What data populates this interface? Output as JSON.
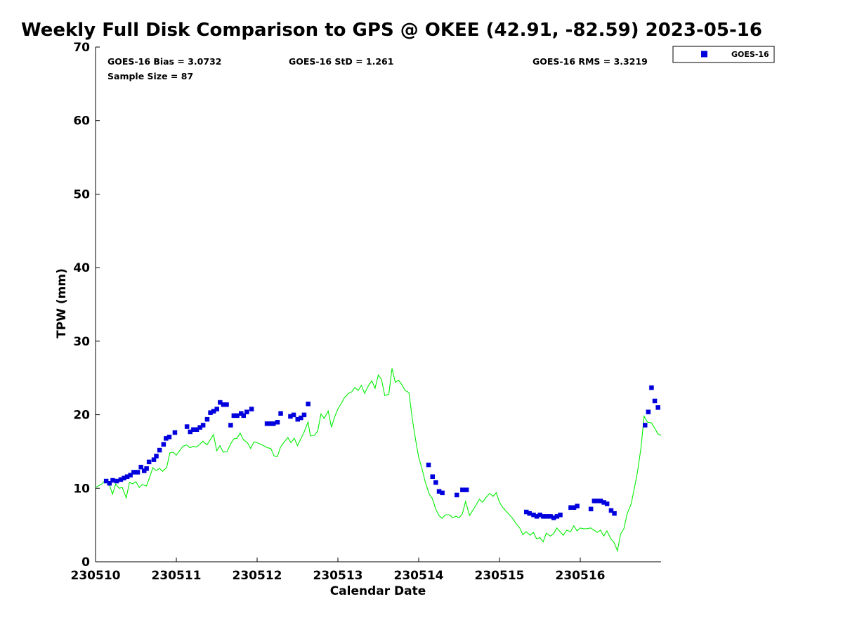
{
  "chart_data": {
    "type": "scatter",
    "title": "Weekly Full Disk Comparison to GPS @ OKEE (42.91, -82.59) 2023-05-16",
    "xlabel": "Calendar Date",
    "ylabel": "TPW (mm)",
    "xlim": [
      0,
      7
    ],
    "ylim": [
      0,
      70
    ],
    "x_ticks": [
      {
        "value": 0,
        "label": "230510"
      },
      {
        "value": 1,
        "label": "230511"
      },
      {
        "value": 2,
        "label": "230512"
      },
      {
        "value": 3,
        "label": "230513"
      },
      {
        "value": 4,
        "label": "230514"
      },
      {
        "value": 5,
        "label": "230515"
      },
      {
        "value": 6,
        "label": "230516"
      }
    ],
    "y_ticks": [
      0,
      10,
      20,
      30,
      40,
      50,
      60,
      70
    ],
    "grid": false,
    "legend": {
      "position": "top-right outside",
      "entries": [
        "GOES-16"
      ]
    },
    "stats": {
      "bias": "GOES-16 Bias = 3.0732",
      "std": "GOES-16 StD = 1.261",
      "rms": "GOES-16 RMS = 3.3219",
      "sample": "Sample Size = 87"
    },
    "series": [
      {
        "name": "GOES-16",
        "kind": "scatter",
        "color": "#0000dd",
        "points": [
          [
            0.13,
            11.0
          ],
          [
            0.17,
            10.7
          ],
          [
            0.21,
            11.1
          ],
          [
            0.26,
            11.0
          ],
          [
            0.31,
            11.2
          ],
          [
            0.35,
            11.4
          ],
          [
            0.39,
            11.6
          ],
          [
            0.43,
            11.8
          ],
          [
            0.47,
            12.2
          ],
          [
            0.52,
            12.2
          ],
          [
            0.56,
            12.9
          ],
          [
            0.6,
            12.4
          ],
          [
            0.63,
            12.7
          ],
          [
            0.66,
            13.6
          ],
          [
            0.72,
            13.9
          ],
          [
            0.75,
            14.4
          ],
          [
            0.79,
            15.2
          ],
          [
            0.84,
            16.0
          ],
          [
            0.87,
            16.8
          ],
          [
            0.91,
            17.0
          ],
          [
            0.98,
            17.6
          ],
          [
            1.13,
            18.4
          ],
          [
            1.17,
            17.7
          ],
          [
            1.21,
            18.0
          ],
          [
            1.25,
            18.0
          ],
          [
            1.29,
            18.3
          ],
          [
            1.33,
            18.6
          ],
          [
            1.38,
            19.4
          ],
          [
            1.42,
            20.3
          ],
          [
            1.46,
            20.5
          ],
          [
            1.5,
            20.8
          ],
          [
            1.54,
            21.7
          ],
          [
            1.58,
            21.4
          ],
          [
            1.62,
            21.4
          ],
          [
            1.67,
            18.6
          ],
          [
            1.71,
            19.9
          ],
          [
            1.75,
            19.9
          ],
          [
            1.8,
            20.2
          ],
          [
            1.83,
            19.9
          ],
          [
            1.87,
            20.4
          ],
          [
            1.93,
            20.8
          ],
          [
            2.12,
            18.8
          ],
          [
            2.16,
            18.8
          ],
          [
            2.2,
            18.8
          ],
          [
            2.25,
            19.0
          ],
          [
            2.29,
            20.2
          ],
          [
            2.41,
            19.8
          ],
          [
            2.45,
            20.0
          ],
          [
            2.5,
            19.4
          ],
          [
            2.54,
            19.6
          ],
          [
            2.58,
            20.0
          ],
          [
            2.63,
            21.5
          ],
          [
            4.12,
            13.2
          ],
          [
            4.17,
            11.6
          ],
          [
            4.21,
            10.8
          ],
          [
            4.25,
            9.6
          ],
          [
            4.29,
            9.4
          ],
          [
            4.47,
            9.1
          ],
          [
            4.54,
            9.8
          ],
          [
            4.59,
            9.8
          ],
          [
            5.33,
            6.8
          ],
          [
            5.37,
            6.6
          ],
          [
            5.42,
            6.4
          ],
          [
            5.46,
            6.2
          ],
          [
            5.5,
            6.4
          ],
          [
            5.54,
            6.2
          ],
          [
            5.58,
            6.2
          ],
          [
            5.63,
            6.2
          ],
          [
            5.67,
            6.0
          ],
          [
            5.71,
            6.2
          ],
          [
            5.75,
            6.4
          ],
          [
            5.88,
            7.4
          ],
          [
            5.92,
            7.4
          ],
          [
            5.96,
            7.6
          ],
          [
            6.13,
            7.2
          ],
          [
            6.17,
            8.3
          ],
          [
            6.21,
            8.3
          ],
          [
            6.25,
            8.3
          ],
          [
            6.29,
            8.1
          ],
          [
            6.33,
            7.9
          ],
          [
            6.38,
            7.0
          ],
          [
            6.42,
            6.6
          ],
          [
            6.8,
            18.6
          ],
          [
            6.84,
            20.4
          ],
          [
            6.88,
            23.7
          ],
          [
            6.92,
            21.9
          ],
          [
            6.96,
            21.0
          ]
        ]
      },
      {
        "name": "GPS",
        "kind": "line",
        "color": "#00ee00",
        "points": [
          [
            0.0,
            10.1
          ],
          [
            0.08,
            10.6
          ],
          [
            0.13,
            11.2
          ],
          [
            0.17,
            10.5
          ],
          [
            0.21,
            9.2
          ],
          [
            0.25,
            10.6
          ],
          [
            0.29,
            10.0
          ],
          [
            0.33,
            10.1
          ],
          [
            0.38,
            8.7
          ],
          [
            0.42,
            10.8
          ],
          [
            0.46,
            10.6
          ],
          [
            0.5,
            10.9
          ],
          [
            0.54,
            10.1
          ],
          [
            0.58,
            10.5
          ],
          [
            0.63,
            10.3
          ],
          [
            0.67,
            11.5
          ],
          [
            0.71,
            12.8
          ],
          [
            0.75,
            12.4
          ],
          [
            0.79,
            12.7
          ],
          [
            0.83,
            12.3
          ],
          [
            0.88,
            12.8
          ],
          [
            0.92,
            14.8
          ],
          [
            0.96,
            14.9
          ],
          [
            1.0,
            14.5
          ],
          [
            1.04,
            15.1
          ],
          [
            1.08,
            15.7
          ],
          [
            1.13,
            15.9
          ],
          [
            1.17,
            15.5
          ],
          [
            1.21,
            15.7
          ],
          [
            1.25,
            15.6
          ],
          [
            1.29,
            16.0
          ],
          [
            1.33,
            16.4
          ],
          [
            1.38,
            15.9
          ],
          [
            1.42,
            16.6
          ],
          [
            1.46,
            17.3
          ],
          [
            1.5,
            15.1
          ],
          [
            1.54,
            15.8
          ],
          [
            1.58,
            14.9
          ],
          [
            1.63,
            15.0
          ],
          [
            1.67,
            16.0
          ],
          [
            1.71,
            16.7
          ],
          [
            1.75,
            16.8
          ],
          [
            1.79,
            17.5
          ],
          [
            1.83,
            16.6
          ],
          [
            1.88,
            16.2
          ],
          [
            1.92,
            15.4
          ],
          [
            1.96,
            16.3
          ],
          [
            2.0,
            16.2
          ],
          [
            2.04,
            16.0
          ],
          [
            2.08,
            15.8
          ],
          [
            2.13,
            15.5
          ],
          [
            2.17,
            15.4
          ],
          [
            2.21,
            14.4
          ],
          [
            2.25,
            14.3
          ],
          [
            2.29,
            15.6
          ],
          [
            2.33,
            16.2
          ],
          [
            2.38,
            16.9
          ],
          [
            2.42,
            16.2
          ],
          [
            2.46,
            16.8
          ],
          [
            2.5,
            15.8
          ],
          [
            2.54,
            16.7
          ],
          [
            2.58,
            17.6
          ],
          [
            2.63,
            19.0
          ],
          [
            2.66,
            17.1
          ],
          [
            2.71,
            17.2
          ],
          [
            2.75,
            17.8
          ],
          [
            2.79,
            20.1
          ],
          [
            2.83,
            19.5
          ],
          [
            2.88,
            20.5
          ],
          [
            2.92,
            18.3
          ],
          [
            2.96,
            19.7
          ],
          [
            3.0,
            20.8
          ],
          [
            3.04,
            21.5
          ],
          [
            3.08,
            22.3
          ],
          [
            3.13,
            22.9
          ],
          [
            3.17,
            23.1
          ],
          [
            3.21,
            23.7
          ],
          [
            3.25,
            23.3
          ],
          [
            3.29,
            24.0
          ],
          [
            3.33,
            22.9
          ],
          [
            3.38,
            24.0
          ],
          [
            3.42,
            24.6
          ],
          [
            3.46,
            23.6
          ],
          [
            3.5,
            25.4
          ],
          [
            3.54,
            24.8
          ],
          [
            3.58,
            22.6
          ],
          [
            3.63,
            22.8
          ],
          [
            3.67,
            26.3
          ],
          [
            3.71,
            24.4
          ],
          [
            3.75,
            24.7
          ],
          [
            3.79,
            24.1
          ],
          [
            3.83,
            23.3
          ],
          [
            3.88,
            23.0
          ],
          [
            3.92,
            19.5
          ],
          [
            3.96,
            16.7
          ],
          [
            4.0,
            14.2
          ],
          [
            4.04,
            12.7
          ],
          [
            4.08,
            10.9
          ],
          [
            4.13,
            9.2
          ],
          [
            4.17,
            8.6
          ],
          [
            4.21,
            7.2
          ],
          [
            4.25,
            6.3
          ],
          [
            4.29,
            5.9
          ],
          [
            4.33,
            6.4
          ],
          [
            4.38,
            6.4
          ],
          [
            4.42,
            6.0
          ],
          [
            4.46,
            6.2
          ],
          [
            4.5,
            6.0
          ],
          [
            4.54,
            6.5
          ],
          [
            4.58,
            8.2
          ],
          [
            4.63,
            6.3
          ],
          [
            4.67,
            7.0
          ],
          [
            4.71,
            7.7
          ],
          [
            4.75,
            8.5
          ],
          [
            4.79,
            8.1
          ],
          [
            4.83,
            8.7
          ],
          [
            4.88,
            9.3
          ],
          [
            4.92,
            8.9
          ],
          [
            4.96,
            9.4
          ],
          [
            5.0,
            8.1
          ],
          [
            5.04,
            7.4
          ],
          [
            5.08,
            6.9
          ],
          [
            5.13,
            6.3
          ],
          [
            5.17,
            5.8
          ],
          [
            5.21,
            5.1
          ],
          [
            5.25,
            4.6
          ],
          [
            5.29,
            3.7
          ],
          [
            5.33,
            4.1
          ],
          [
            5.38,
            3.6
          ],
          [
            5.42,
            4.0
          ],
          [
            5.46,
            3.1
          ],
          [
            5.5,
            3.3
          ],
          [
            5.54,
            2.7
          ],
          [
            5.58,
            3.9
          ],
          [
            5.63,
            3.5
          ],
          [
            5.67,
            3.8
          ],
          [
            5.71,
            4.6
          ],
          [
            5.75,
            4.1
          ],
          [
            5.79,
            3.6
          ],
          [
            5.83,
            4.3
          ],
          [
            5.88,
            4.1
          ],
          [
            5.92,
            4.9
          ],
          [
            5.96,
            4.2
          ],
          [
            6.0,
            4.6
          ],
          [
            6.04,
            4.5
          ],
          [
            6.08,
            4.5
          ],
          [
            6.13,
            4.6
          ],
          [
            6.17,
            4.3
          ],
          [
            6.21,
            4.0
          ],
          [
            6.25,
            4.3
          ],
          [
            6.29,
            3.5
          ],
          [
            6.33,
            4.2
          ],
          [
            6.38,
            3.1
          ],
          [
            6.42,
            2.6
          ],
          [
            6.46,
            1.5
          ],
          [
            6.5,
            3.8
          ],
          [
            6.54,
            4.5
          ],
          [
            6.58,
            6.5
          ],
          [
            6.63,
            7.9
          ],
          [
            6.67,
            10.0
          ],
          [
            6.71,
            12.3
          ],
          [
            6.75,
            15.4
          ],
          [
            6.79,
            19.8
          ],
          [
            6.83,
            19.0
          ],
          [
            6.88,
            18.9
          ],
          [
            6.92,
            18.2
          ],
          [
            6.96,
            17.4
          ],
          [
            7.0,
            17.2
          ]
        ]
      }
    ]
  }
}
